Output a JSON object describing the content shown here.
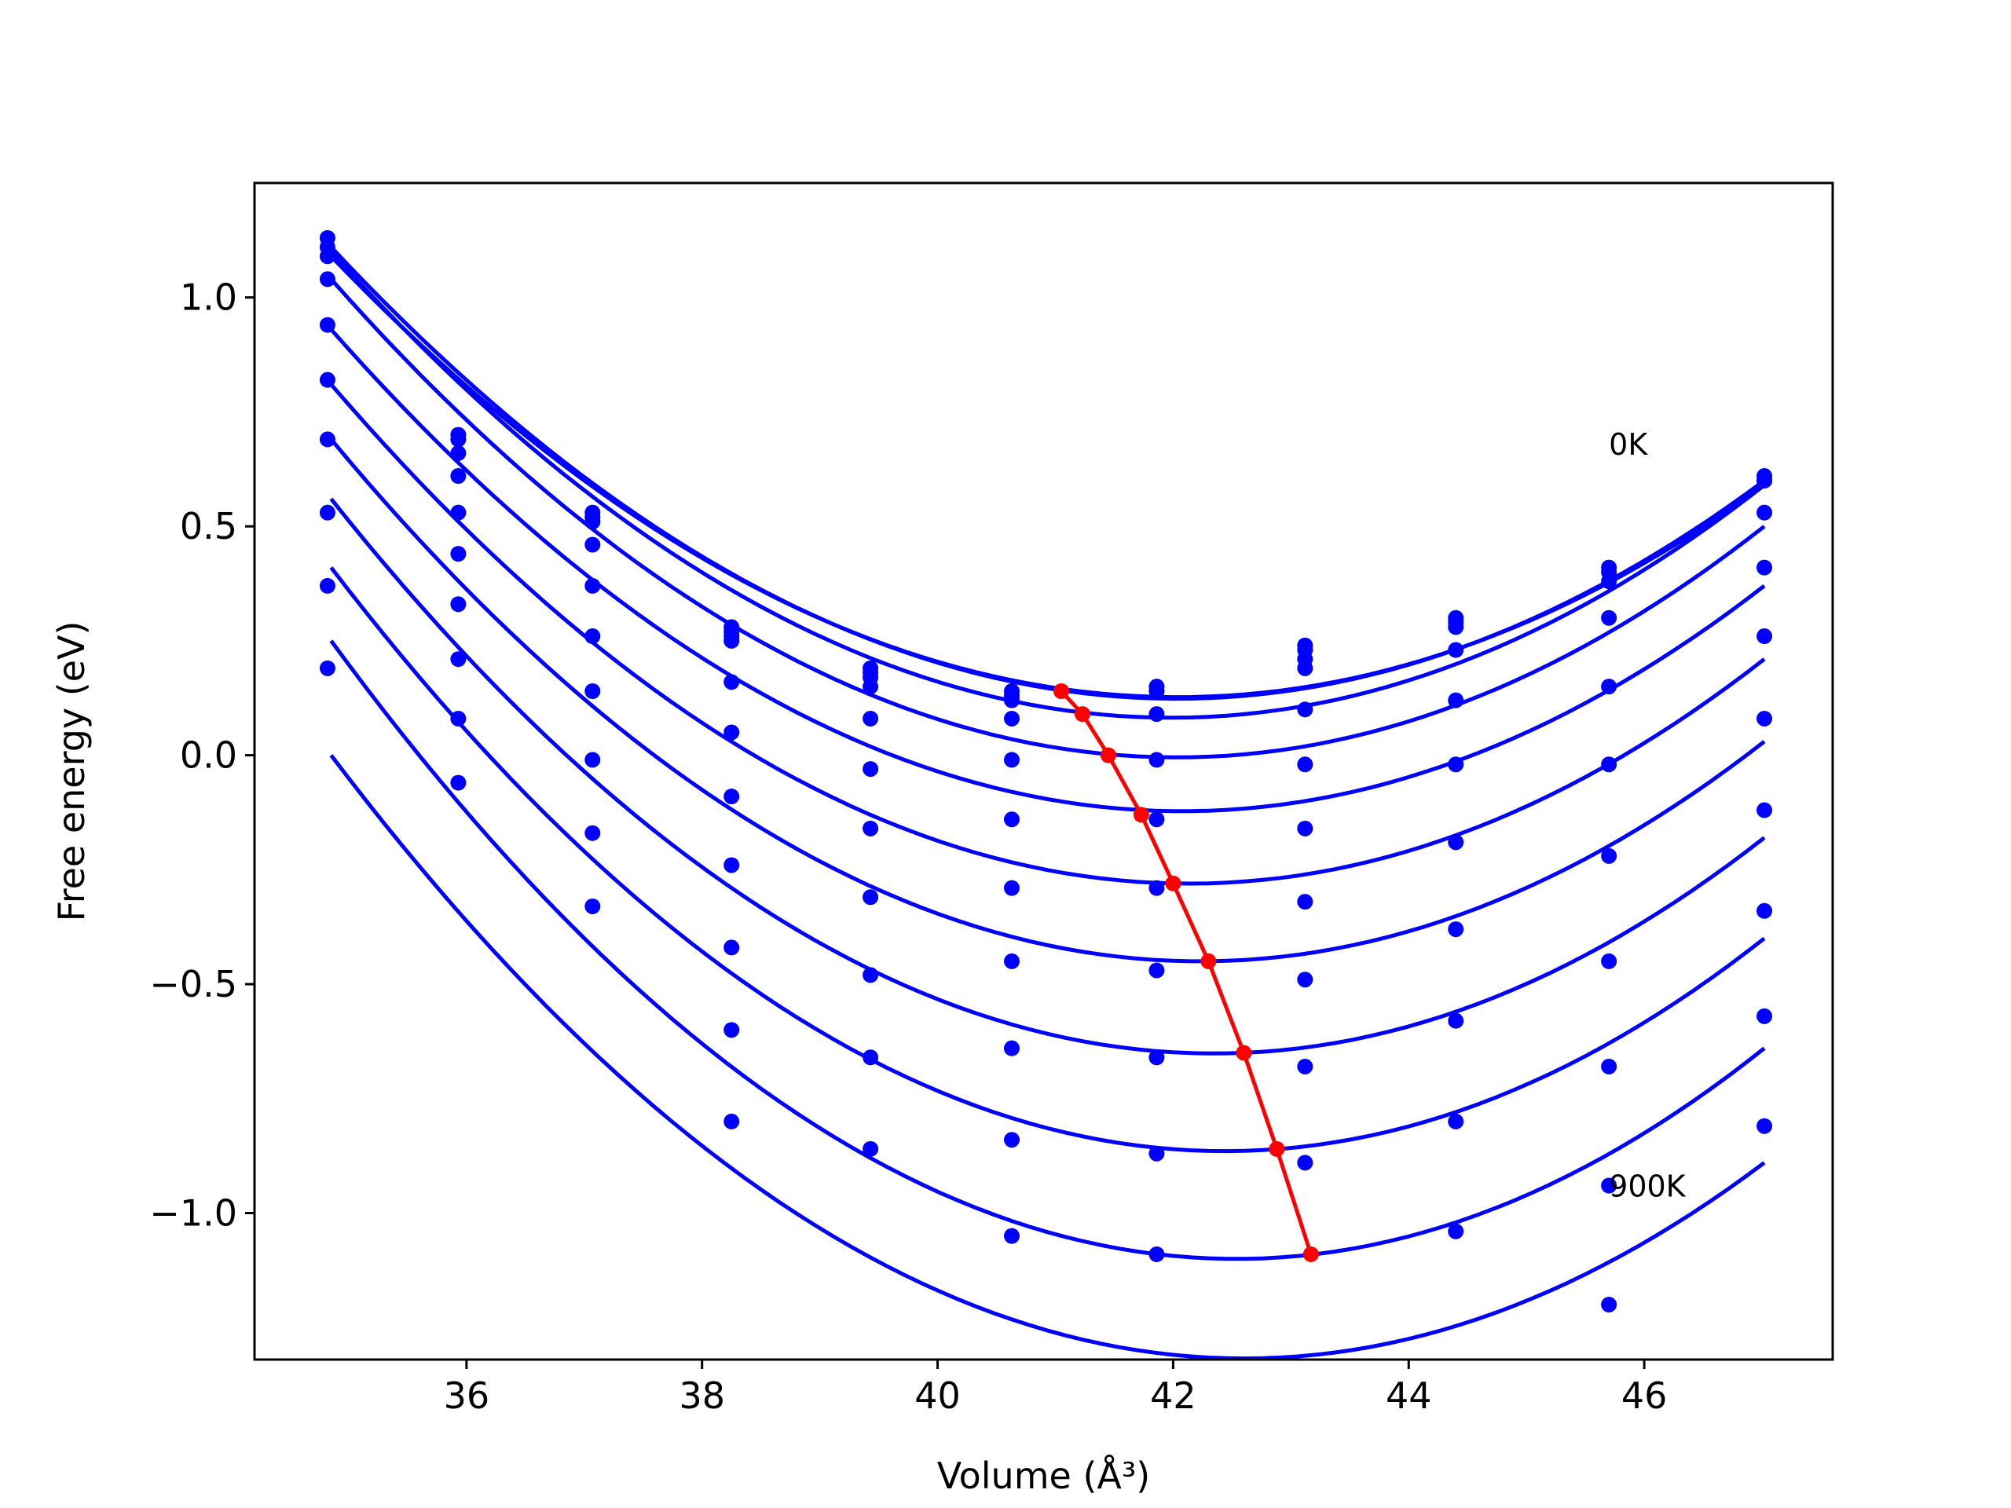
{
  "chart_data": {
    "type": "scatter",
    "xlabel": "Volume (Å³)",
    "ylabel": "Free energy (eV)",
    "xlim": [
      34.2,
      47.6
    ],
    "ylim": [
      -1.32,
      1.25
    ],
    "xticks": [
      36,
      38,
      40,
      42,
      44,
      46
    ],
    "yticks": [
      -1.0,
      -0.5,
      0.0,
      0.5,
      1.0
    ],
    "xtick_labels": [
      "36",
      "38",
      "40",
      "42",
      "44",
      "46"
    ],
    "ytick_labels": [
      "−1.0",
      "−0.5",
      "0.0",
      "0.5",
      "1.0"
    ],
    "grid": false,
    "legend": "none",
    "annotations": [
      {
        "text": "0K",
        "x": 45.7,
        "y": 0.68
      },
      {
        "text": "900K",
        "x": 45.7,
        "y": -0.94
      }
    ],
    "volumes": [
      34.82,
      35.93,
      37.07,
      38.25,
      39.43,
      40.63,
      41.86,
      43.12,
      44.4,
      45.7,
      47.02
    ],
    "series": [
      {
        "values": [
          1.13,
          0.7,
          0.53,
          0.28,
          0.19,
          0.14,
          0.15,
          0.24,
          0.3,
          0.41,
          0.61
        ]
      },
      {
        "values": [
          1.11,
          0.69,
          0.52,
          0.27,
          0.18,
          0.13,
          0.14,
          0.23,
          0.29,
          0.4,
          0.6
        ]
      },
      {
        "values": [
          1.09,
          0.66,
          0.51,
          0.26,
          0.17,
          0.12,
          0.14,
          0.21,
          0.28,
          0.38,
          0.6
        ]
      },
      {
        "values": [
          1.04,
          0.61,
          0.46,
          0.25,
          0.15,
          0.08,
          0.09,
          0.19,
          0.23,
          0.3,
          0.53
        ]
      },
      {
        "values": [
          0.94,
          0.53,
          0.37,
          0.16,
          0.08,
          -0.01,
          -0.01,
          0.1,
          0.12,
          0.15,
          0.41
        ]
      },
      {
        "values": [
          0.82,
          0.44,
          0.26,
          0.05,
          -0.03,
          -0.14,
          -0.14,
          -0.02,
          -0.02,
          -0.02,
          0.26
        ]
      },
      {
        "values": [
          0.69,
          0.33,
          0.14,
          -0.09,
          -0.16,
          -0.29,
          -0.29,
          -0.16,
          -0.19,
          -0.22,
          0.08
        ]
      },
      {
        "values": [
          0.53,
          0.21,
          -0.01,
          -0.24,
          -0.31,
          -0.45,
          -0.47,
          -0.32,
          -0.38,
          -0.45,
          -0.12
        ]
      },
      {
        "values": [
          0.37,
          0.08,
          -0.17,
          -0.42,
          -0.48,
          -0.64,
          -0.66,
          -0.49,
          -0.58,
          -0.68,
          -0.34
        ]
      },
      {
        "values": [
          0.19,
          -0.06,
          -0.33,
          -0.6,
          -0.66,
          -0.84,
          -0.87,
          -0.68,
          -0.8,
          -0.94,
          -0.57
        ]
      },
      {
        "values": [
          null,
          null,
          null,
          -0.8,
          -0.86,
          -1.05,
          -1.09,
          -0.89,
          -1.04,
          -1.2,
          -0.81
        ]
      }
    ],
    "fit_curves": [
      {
        "x": [
          34.85,
          41.1,
          47.02
        ],
        "y": [
          1.11,
          0.14,
          0.6
        ]
      },
      {
        "x": [
          34.85,
          41.2,
          47.02
        ],
        "y": [
          1.09,
          0.14,
          0.59
        ]
      },
      {
        "x": [
          34.85,
          41.35,
          47.02
        ],
        "y": [
          1.1,
          0.09,
          0.59
        ]
      },
      {
        "x": [
          34.85,
          41.55,
          47.02
        ],
        "y": [
          1.04,
          0.0,
          0.5
        ]
      },
      {
        "x": [
          34.85,
          41.75,
          47.02
        ],
        "y": [
          0.93,
          -0.12,
          0.37
        ]
      },
      {
        "x": [
          34.85,
          42.0,
          47.02
        ],
        "y": [
          0.81,
          -0.28,
          0.21
        ]
      },
      {
        "x": [
          34.85,
          42.3,
          47.02
        ],
        "y": [
          0.69,
          -0.45,
          0.03
        ]
      },
      {
        "x": [
          34.85,
          42.6,
          47.02
        ],
        "y": [
          0.56,
          -0.65,
          -0.18
        ]
      },
      {
        "x": [
          34.85,
          42.9,
          47.02
        ],
        "y": [
          0.41,
          -0.86,
          -0.4
        ]
      },
      {
        "x": [
          34.85,
          43.2,
          47.02
        ],
        "y": [
          0.25,
          -1.09,
          -0.64
        ]
      },
      {
        "x": [
          34.85,
          43.5,
          47.02
        ],
        "y": [
          0.0,
          -1.3,
          -0.89
        ]
      }
    ],
    "minima_line": {
      "x": [
        41.05,
        41.23,
        41.45,
        41.73,
        42.0,
        42.3,
        42.6,
        42.88,
        43.17
      ],
      "y": [
        0.14,
        0.09,
        0.0,
        -0.13,
        -0.28,
        -0.45,
        -0.65,
        -0.86,
        -1.09
      ]
    },
    "colors": {
      "data": "#0000ff",
      "minima": "#ff0000",
      "axes": "#000000"
    }
  }
}
